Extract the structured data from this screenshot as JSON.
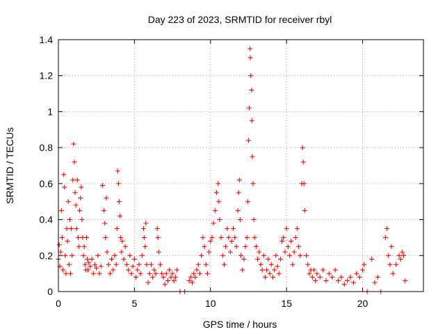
{
  "chart_data": {
    "type": "scatter",
    "title": "Day 223 of 2023, SRMTID for receiver rbyl",
    "xlabel": "GPS time / hours",
    "ylabel": "SRMTID / TECUs",
    "xlim": [
      0,
      24
    ],
    "ylim": [
      0,
      1.4
    ],
    "xticks": [
      0,
      5,
      10,
      15,
      20
    ],
    "xtick_labels": [
      "0",
      "5",
      "10",
      "15",
      "20"
    ],
    "yticks": [
      0,
      0.2,
      0.4,
      0.6,
      0.8,
      1.0,
      1.2,
      1.4
    ],
    "ytick_labels": [
      "0",
      "0.2",
      "0.4",
      "0.6",
      "0.8",
      "1",
      "1.2",
      "1.4"
    ],
    "grid": true,
    "marker": "+",
    "color": "#ff0000",
    "series": [
      {
        "name": "SRMTID",
        "points": [
          [
            0.0,
            0.18
          ],
          [
            0.05,
            0.26
          ],
          [
            0.1,
            0.14
          ],
          [
            0.15,
            0.22
          ],
          [
            0.2,
            0.45
          ],
          [
            0.25,
            0.3
          ],
          [
            0.3,
            0.12
          ],
          [
            0.35,
            0.65
          ],
          [
            0.4,
            0.58
          ],
          [
            0.45,
            0.2
          ],
          [
            0.5,
            0.1
          ],
          [
            0.55,
            0.35
          ],
          [
            0.6,
            0.28
          ],
          [
            0.65,
            0.5
          ],
          [
            0.7,
            0.15
          ],
          [
            0.75,
            0.4
          ],
          [
            0.8,
            0.1
          ],
          [
            0.85,
            0.35
          ],
          [
            0.9,
            0.2
          ],
          [
            0.95,
            0.62
          ],
          [
            1.0,
            0.82
          ],
          [
            1.05,
            0.72
          ],
          [
            1.1,
            0.55
          ],
          [
            1.15,
            0.48
          ],
          [
            1.2,
            0.35
          ],
          [
            1.25,
            0.62
          ],
          [
            1.3,
            0.3
          ],
          [
            1.35,
            0.25
          ],
          [
            1.4,
            0.45
          ],
          [
            1.45,
            0.52
          ],
          [
            1.5,
            0.58
          ],
          [
            1.55,
            0.4
          ],
          [
            1.6,
            0.3
          ],
          [
            1.65,
            0.2
          ],
          [
            1.7,
            0.25
          ],
          [
            1.75,
            0.15
          ],
          [
            1.8,
            0.12
          ],
          [
            1.85,
            0.3
          ],
          [
            1.9,
            0.18
          ],
          [
            1.95,
            0.12
          ],
          [
            2.0,
            0.16
          ],
          [
            2.1,
            0.14
          ],
          [
            2.2,
            0.18
          ],
          [
            2.3,
            0.1
          ],
          [
            2.4,
            0.15
          ],
          [
            2.5,
            0.13
          ],
          [
            2.6,
            0.2
          ],
          [
            2.7,
            0.1
          ],
          [
            2.8,
            0.14
          ],
          [
            2.9,
            0.59
          ],
          [
            3.0,
            0.45
          ],
          [
            3.05,
            0.38
          ],
          [
            3.1,
            0.3
          ],
          [
            3.15,
            0.52
          ],
          [
            3.2,
            0.22
          ],
          [
            3.3,
            0.15
          ],
          [
            3.4,
            0.1
          ],
          [
            3.5,
            0.18
          ],
          [
            3.6,
            0.12
          ],
          [
            3.7,
            0.2
          ],
          [
            3.8,
            0.15
          ],
          [
            3.85,
            0.35
          ],
          [
            3.9,
            0.67
          ],
          [
            3.95,
            0.6
          ],
          [
            4.0,
            0.5
          ],
          [
            4.05,
            0.42
          ],
          [
            4.1,
            0.3
          ],
          [
            4.15,
            0.22
          ],
          [
            4.2,
            0.28
          ],
          [
            4.3,
            0.18
          ],
          [
            4.4,
            0.25
          ],
          [
            4.5,
            0.15
          ],
          [
            4.6,
            0.12
          ],
          [
            4.7,
            0.2
          ],
          [
            4.8,
            0.1
          ],
          [
            4.9,
            0.14
          ],
          [
            5.0,
            0.18
          ],
          [
            5.1,
            0.08
          ],
          [
            5.2,
            0.12
          ],
          [
            5.3,
            0.15
          ],
          [
            5.4,
            0.1
          ],
          [
            5.5,
            0.2
          ],
          [
            5.6,
            0.35
          ],
          [
            5.65,
            0.3
          ],
          [
            5.7,
            0.25
          ],
          [
            5.75,
            0.38
          ],
          [
            5.8,
            0.15
          ],
          [
            5.9,
            0.05
          ],
          [
            6.0,
            0.1
          ],
          [
            6.1,
            0.15
          ],
          [
            6.2,
            0.08
          ],
          [
            6.3,
            0.12
          ],
          [
            6.4,
            0.1
          ],
          [
            6.5,
            0.35
          ],
          [
            6.55,
            0.3
          ],
          [
            6.6,
            0.22
          ],
          [
            6.7,
            0.15
          ],
          [
            6.8,
            0.1
          ],
          [
            6.9,
            0.08
          ],
          [
            7.0,
            0.04
          ],
          [
            7.1,
            0.1
          ],
          [
            7.2,
            0.06
          ],
          [
            7.3,
            0.12
          ],
          [
            7.4,
            0.08
          ],
          [
            7.5,
            0.1
          ],
          [
            7.6,
            0.06
          ],
          [
            7.7,
            0.08
          ],
          [
            7.8,
            0.12
          ],
          [
            8.0,
            0.0
          ],
          [
            8.3,
            0.0
          ],
          [
            8.6,
            0.06
          ],
          [
            8.7,
            0.08
          ],
          [
            8.8,
            0.05
          ],
          [
            8.9,
            0.1
          ],
          [
            9.0,
            0.08
          ],
          [
            9.1,
            0.12
          ],
          [
            9.2,
            0.15
          ],
          [
            9.3,
            0.1
          ],
          [
            9.4,
            0.2
          ],
          [
            9.5,
            0.3
          ],
          [
            9.6,
            0.25
          ],
          [
            9.7,
            0.15
          ],
          [
            9.8,
            0.1
          ],
          [
            9.9,
            0.22
          ],
          [
            10.0,
            0.28
          ],
          [
            10.1,
            0.3
          ],
          [
            10.2,
            0.38
          ],
          [
            10.3,
            0.45
          ],
          [
            10.4,
            0.55
          ],
          [
            10.5,
            0.6
          ],
          [
            10.55,
            0.5
          ],
          [
            10.6,
            0.4
          ],
          [
            10.7,
            0.3
          ],
          [
            10.8,
            0.2
          ],
          [
            10.9,
            0.15
          ],
          [
            11.0,
            0.25
          ],
          [
            11.1,
            0.35
          ],
          [
            11.2,
            0.3
          ],
          [
            11.3,
            0.22
          ],
          [
            11.4,
            0.28
          ],
          [
            11.5,
            0.35
          ],
          [
            11.6,
            0.3
          ],
          [
            11.7,
            0.25
          ],
          [
            11.8,
            0.45
          ],
          [
            11.85,
            0.55
          ],
          [
            11.9,
            0.62
          ],
          [
            11.95,
            0.4
          ],
          [
            12.0,
            0.2
          ],
          [
            12.1,
            0.12
          ],
          [
            12.2,
            0.18
          ],
          [
            12.3,
            0.25
          ],
          [
            12.4,
            0.3
          ],
          [
            12.45,
            0.5
          ],
          [
            12.5,
            0.84
          ],
          [
            12.55,
            1.02
          ],
          [
            12.6,
            1.35
          ],
          [
            12.62,
            1.3
          ],
          [
            12.65,
            1.2
          ],
          [
            12.7,
            1.12
          ],
          [
            12.72,
            0.95
          ],
          [
            12.75,
            0.75
          ],
          [
            12.8,
            0.6
          ],
          [
            12.85,
            0.4
          ],
          [
            12.9,
            0.3
          ],
          [
            13.0,
            0.25
          ],
          [
            13.1,
            0.18
          ],
          [
            13.2,
            0.22
          ],
          [
            13.3,
            0.15
          ],
          [
            13.4,
            0.12
          ],
          [
            13.5,
            0.2
          ],
          [
            13.6,
            0.08
          ],
          [
            13.7,
            0.12
          ],
          [
            13.8,
            0.18
          ],
          [
            13.9,
            0.1
          ],
          [
            14.0,
            0.15
          ],
          [
            14.1,
            0.08
          ],
          [
            14.2,
            0.12
          ],
          [
            14.3,
            0.2
          ],
          [
            14.4,
            0.14
          ],
          [
            14.5,
            0.1
          ],
          [
            14.6,
            0.18
          ],
          [
            14.7,
            0.28
          ],
          [
            14.8,
            0.3
          ],
          [
            14.9,
            0.22
          ],
          [
            15.0,
            0.35
          ],
          [
            15.1,
            0.25
          ],
          [
            15.2,
            0.2
          ],
          [
            15.3,
            0.28
          ],
          [
            15.4,
            0.15
          ],
          [
            15.5,
            0.22
          ],
          [
            15.6,
            0.3
          ],
          [
            15.7,
            0.35
          ],
          [
            15.8,
            0.25
          ],
          [
            15.9,
            0.2
          ],
          [
            16.0,
            0.6
          ],
          [
            16.05,
            0.8
          ],
          [
            16.1,
            0.72
          ],
          [
            16.15,
            0.6
          ],
          [
            16.2,
            0.45
          ],
          [
            16.3,
            0.2
          ],
          [
            16.4,
            0.15
          ],
          [
            16.5,
            0.1
          ],
          [
            16.6,
            0.12
          ],
          [
            16.7,
            0.08
          ],
          [
            16.8,
            0.12
          ],
          [
            16.9,
            0.06
          ],
          [
            17.0,
            0.1
          ],
          [
            17.2,
            0.08
          ],
          [
            17.4,
            0.12
          ],
          [
            17.6,
            0.06
          ],
          [
            17.8,
            0.1
          ],
          [
            18.0,
            0.08
          ],
          [
            18.2,
            0.12
          ],
          [
            18.4,
            0.06
          ],
          [
            18.6,
            0.08
          ],
          [
            18.8,
            0.04
          ],
          [
            19.0,
            0.06
          ],
          [
            19.2,
            0.08
          ],
          [
            19.4,
            0.05
          ],
          [
            19.6,
            0.1
          ],
          [
            19.8,
            0.08
          ],
          [
            20.0,
            0.12
          ],
          [
            20.1,
            0.15
          ],
          [
            20.3,
            0.0
          ],
          [
            20.6,
            0.18
          ],
          [
            20.8,
            0.05
          ],
          [
            21.0,
            0.08
          ],
          [
            21.2,
            0.0
          ],
          [
            21.5,
            0.3
          ],
          [
            21.6,
            0.35
          ],
          [
            21.7,
            0.2
          ],
          [
            21.8,
            0.15
          ],
          [
            21.9,
            0.25
          ],
          [
            22.0,
            0.1
          ],
          [
            22.2,
            0.15
          ],
          [
            22.4,
            0.2
          ],
          [
            22.5,
            0.18
          ],
          [
            22.6,
            0.22
          ],
          [
            22.7,
            0.2
          ],
          [
            22.8,
            0.06
          ]
        ]
      }
    ]
  }
}
